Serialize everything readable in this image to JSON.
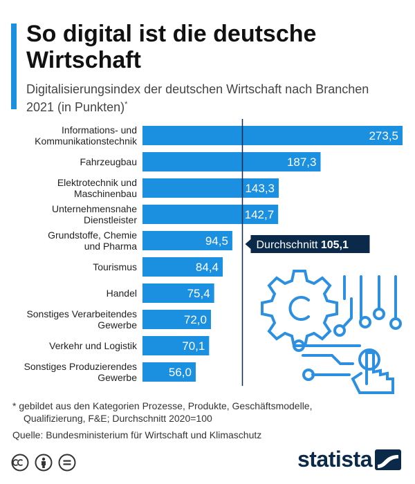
{
  "header": {
    "title": "So digital ist die deutsche Wirtschaft",
    "subtitle": "Digitalisierungsindex der deutschen Wirtschaft nach Branchen 2021 (in Punkten)",
    "subtitle_mark": "*"
  },
  "chart_data": {
    "type": "bar",
    "orientation": "horizontal",
    "title": "So digital ist die deutsche Wirtschaft",
    "subtitle": "Digitalisierungsindex der deutschen Wirtschaft nach Branchen 2021 (in Punkten)*",
    "categories": [
      [
        "Informations- und",
        "Kommunikationstechnik"
      ],
      [
        "Fahrzeugbau"
      ],
      [
        "Elektrotechnik und",
        "Maschinenbau"
      ],
      [
        "Unternehmensnahe",
        "Dienstleister"
      ],
      [
        "Grundstoffe, Chemie",
        "und Pharma"
      ],
      [
        "Tourismus"
      ],
      [
        "Handel"
      ],
      [
        "Sonstiges Verarbeitendes",
        "Gewerbe"
      ],
      [
        "Verkehr und Logistik"
      ],
      [
        "Sonstiges Produzierendes",
        "Gewerbe"
      ]
    ],
    "values": [
      273.5,
      187.3,
      143.3,
      142.7,
      94.5,
      84.4,
      75.4,
      72.0,
      70.1,
      56.0
    ],
    "value_labels": [
      "273,5",
      "187,3",
      "143,3",
      "142,7",
      "94,5",
      "84,4",
      "75,4",
      "72,0",
      "70,1",
      "56,0"
    ],
    "xlim": [
      0,
      273.5
    ],
    "reference_line": {
      "value": 105.1,
      "label": "Durchschnitt",
      "value_label": "105,1"
    },
    "bar_color": "#1b8fe0",
    "grid": false
  },
  "footer": {
    "footnote_line1": "* gebildet aus den Kategorien Prozesse, Produkte, Geschäftsmodelle,",
    "footnote_line2": "Qualifizierung, F&E; Durchschnitt 2020=100",
    "source": "Quelle: Bundesministerium für Wirtschaft und Klimaschutz",
    "brand": "statista"
  },
  "colors": {
    "accent": "#1b8fe0",
    "dark": "#0b2a4a",
    "illustration": "#2c8fe0"
  }
}
